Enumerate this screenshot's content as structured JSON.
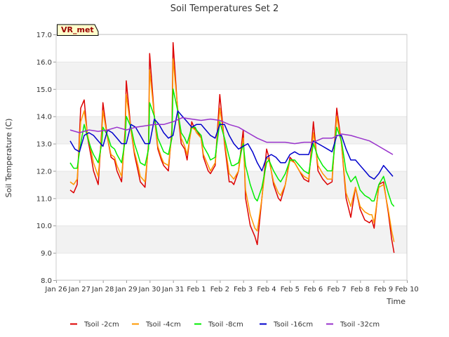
{
  "chart_data": {
    "type": "line",
    "title": "Soil Temperatures Set 2",
    "xlabel": "Time",
    "ylabel": "Soil Temperature (C)",
    "station_badge": "VR_met",
    "xlim": [
      0,
      15
    ],
    "ylim": [
      8.0,
      17.0
    ],
    "x_tick_labels": [
      "Jan 26",
      "Jan 27",
      "Jan 28",
      "Jan 29",
      "Jan 30",
      "Jan 31",
      "Feb 1",
      "Feb 2",
      "Feb 3",
      "Feb 4",
      "Feb 5",
      "Feb 6",
      "Feb 7",
      "Feb 8",
      "Feb 9",
      "Feb 10"
    ],
    "y_ticks": [
      8.0,
      9.0,
      10.0,
      11.0,
      12.0,
      13.0,
      14.0,
      15.0,
      16.0,
      17.0
    ],
    "y_tick_labels": [
      "8.0",
      "9.0",
      "10.0",
      "11.0",
      "12.0",
      "13.0",
      "14.0",
      "15.0",
      "16.0",
      "17.0"
    ],
    "grid": "horizontal bands",
    "legend_position": "bottom",
    "series": [
      {
        "name": "Tsoil -2cm",
        "color": "#dd0000",
        "x": [
          0.6,
          0.75,
          0.9,
          1.05,
          1.2,
          1.35,
          1.5,
          1.6,
          1.8,
          1.95,
          2.0,
          2.2,
          2.35,
          2.5,
          2.6,
          2.8,
          2.95,
          3.0,
          3.2,
          3.35,
          3.5,
          3.6,
          3.8,
          3.95,
          4.0,
          4.2,
          4.35,
          4.5,
          4.6,
          4.8,
          4.95,
          5.0,
          5.2,
          5.35,
          5.5,
          5.6,
          5.8,
          5.95,
          6.0,
          6.2,
          6.3,
          6.5,
          6.6,
          6.8,
          7.0,
          7.2,
          7.4,
          7.5,
          7.6,
          7.8,
          8.0,
          8.1,
          8.3,
          8.5,
          8.6,
          8.8,
          9.0,
          9.1,
          9.3,
          9.5,
          9.6,
          9.8,
          10.0,
          10.2,
          10.4,
          10.6,
          10.8,
          11.0,
          11.2,
          11.4,
          11.6,
          11.8,
          12.0,
          12.2,
          12.4,
          12.6,
          12.8,
          13.0,
          13.2,
          13.4,
          13.5,
          13.6,
          13.8,
          14.0,
          14.2,
          14.35,
          14.45
        ],
        "values": [
          11.3,
          11.2,
          11.5,
          14.3,
          14.6,
          13.2,
          12.5,
          12.0,
          11.5,
          13.5,
          14.5,
          13.2,
          12.5,
          12.4,
          12.0,
          11.6,
          13.5,
          15.3,
          13.5,
          12.6,
          12.0,
          11.6,
          11.4,
          13.0,
          16.3,
          14.0,
          12.8,
          12.4,
          12.2,
          12.0,
          13.5,
          16.7,
          14.2,
          13.0,
          12.8,
          12.4,
          13.8,
          13.5,
          13.5,
          13.2,
          12.5,
          12.0,
          11.9,
          12.2,
          14.8,
          13.0,
          11.6,
          11.6,
          11.5,
          12.0,
          13.5,
          11.0,
          10.0,
          9.6,
          9.3,
          11.0,
          12.8,
          12.5,
          11.5,
          11.0,
          10.9,
          11.5,
          12.5,
          12.3,
          12.0,
          11.7,
          11.6,
          13.8,
          12.0,
          11.7,
          11.5,
          11.6,
          14.3,
          13.0,
          11.0,
          10.3,
          11.4,
          10.6,
          10.2,
          10.1,
          10.2,
          9.9,
          11.5,
          11.6,
          10.5,
          9.5,
          9.0
        ]
      },
      {
        "name": "Tsoil -4cm",
        "color": "#ff9900",
        "x": [
          0.6,
          0.75,
          0.9,
          1.05,
          1.2,
          1.35,
          1.5,
          1.6,
          1.8,
          1.95,
          2.0,
          2.2,
          2.35,
          2.5,
          2.6,
          2.8,
          2.95,
          3.0,
          3.2,
          3.35,
          3.5,
          3.6,
          3.8,
          3.95,
          4.0,
          4.2,
          4.35,
          4.5,
          4.6,
          4.8,
          4.95,
          5.0,
          5.2,
          5.35,
          5.5,
          5.6,
          5.8,
          5.95,
          6.0,
          6.2,
          6.3,
          6.5,
          6.6,
          6.8,
          7.0,
          7.2,
          7.4,
          7.5,
          7.6,
          7.8,
          8.0,
          8.1,
          8.3,
          8.5,
          8.6,
          8.8,
          9.0,
          9.1,
          9.3,
          9.5,
          9.6,
          9.8,
          10.0,
          10.2,
          10.4,
          10.6,
          10.8,
          11.0,
          11.2,
          11.4,
          11.6,
          11.8,
          12.0,
          12.2,
          12.4,
          12.6,
          12.8,
          13.0,
          13.2,
          13.4,
          13.5,
          13.6,
          13.8,
          14.0,
          14.2,
          14.35,
          14.45
        ],
        "values": [
          11.6,
          11.5,
          11.7,
          13.8,
          14.2,
          13.3,
          12.7,
          12.3,
          11.8,
          13.3,
          14.2,
          13.2,
          12.6,
          12.5,
          12.2,
          11.8,
          13.3,
          14.8,
          13.5,
          12.7,
          12.2,
          11.8,
          11.6,
          12.9,
          15.7,
          14.0,
          12.9,
          12.5,
          12.3,
          12.2,
          13.3,
          16.1,
          14.3,
          13.2,
          12.9,
          12.6,
          13.6,
          13.5,
          13.4,
          13.2,
          12.6,
          12.2,
          12.0,
          12.3,
          14.3,
          13.1,
          11.9,
          11.8,
          11.7,
          12.0,
          13.2,
          11.3,
          10.4,
          9.9,
          9.8,
          11.0,
          12.5,
          12.4,
          11.6,
          11.2,
          11.1,
          11.5,
          12.4,
          12.3,
          12.0,
          11.8,
          11.7,
          13.4,
          12.2,
          11.9,
          11.7,
          11.7,
          14.0,
          13.0,
          11.2,
          10.7,
          11.4,
          10.7,
          10.5,
          10.4,
          10.4,
          10.1,
          11.4,
          11.5,
          10.6,
          9.8,
          9.4
        ]
      },
      {
        "name": "Tsoil -8cm",
        "color": "#00ee00",
        "x": [
          0.6,
          0.75,
          0.9,
          1.05,
          1.2,
          1.35,
          1.5,
          1.6,
          1.8,
          1.95,
          2.0,
          2.2,
          2.35,
          2.5,
          2.6,
          2.8,
          2.95,
          3.0,
          3.2,
          3.35,
          3.5,
          3.6,
          3.8,
          3.95,
          4.0,
          4.2,
          4.35,
          4.5,
          4.6,
          4.8,
          4.95,
          5.0,
          5.2,
          5.35,
          5.5,
          5.6,
          5.8,
          5.95,
          6.0,
          6.2,
          6.3,
          6.5,
          6.6,
          6.8,
          7.0,
          7.2,
          7.4,
          7.5,
          7.6,
          7.8,
          8.0,
          8.1,
          8.3,
          8.5,
          8.6,
          8.8,
          9.0,
          9.1,
          9.3,
          9.5,
          9.6,
          9.8,
          10.0,
          10.2,
          10.4,
          10.6,
          10.8,
          11.0,
          11.2,
          11.4,
          11.6,
          11.8,
          12.0,
          12.2,
          12.4,
          12.6,
          12.8,
          13.0,
          13.2,
          13.4,
          13.5,
          13.6,
          13.8,
          14.0,
          14.2,
          14.35,
          14.45
        ],
        "values": [
          12.3,
          12.1,
          12.1,
          13.0,
          13.7,
          13.2,
          12.8,
          12.6,
          12.3,
          13.0,
          13.6,
          13.3,
          12.9,
          12.8,
          12.6,
          12.3,
          13.1,
          14.0,
          13.6,
          13.0,
          12.6,
          12.3,
          12.2,
          12.8,
          14.5,
          14.0,
          13.2,
          12.9,
          12.7,
          12.6,
          13.2,
          15.0,
          14.2,
          13.4,
          13.2,
          13.0,
          13.6,
          13.6,
          13.5,
          13.3,
          12.9,
          12.6,
          12.4,
          12.5,
          13.8,
          13.2,
          12.5,
          12.2,
          12.2,
          12.3,
          13.0,
          12.2,
          11.5,
          11.0,
          10.9,
          11.4,
          12.3,
          12.4,
          12.0,
          11.7,
          11.6,
          11.9,
          12.4,
          12.4,
          12.2,
          12.0,
          11.9,
          13.0,
          12.5,
          12.2,
          12.0,
          12.0,
          13.6,
          13.1,
          12.0,
          11.6,
          11.8,
          11.3,
          11.1,
          11.0,
          10.9,
          10.9,
          11.5,
          11.8,
          11.2,
          10.8,
          10.7
        ]
      },
      {
        "name": "Tsoil -16cm",
        "color": "#0000cc",
        "x": [
          0.6,
          0.8,
          1.0,
          1.2,
          1.4,
          1.6,
          1.8,
          2.0,
          2.2,
          2.4,
          2.6,
          2.8,
          3.0,
          3.2,
          3.4,
          3.6,
          3.8,
          4.0,
          4.2,
          4.4,
          4.6,
          4.8,
          5.0,
          5.2,
          5.4,
          5.6,
          5.8,
          6.0,
          6.2,
          6.4,
          6.6,
          6.8,
          7.0,
          7.2,
          7.4,
          7.6,
          7.8,
          8.0,
          8.2,
          8.4,
          8.6,
          8.8,
          9.0,
          9.2,
          9.4,
          9.6,
          9.8,
          10.0,
          10.2,
          10.4,
          10.6,
          10.8,
          11.0,
          11.2,
          11.4,
          11.6,
          11.8,
          12.0,
          12.2,
          12.4,
          12.6,
          12.8,
          13.0,
          13.2,
          13.4,
          13.6,
          13.8,
          14.0,
          14.2,
          14.4
        ],
        "values": [
          13.1,
          12.8,
          12.7,
          13.3,
          13.4,
          13.3,
          13.1,
          12.9,
          13.5,
          13.4,
          13.2,
          13.0,
          13.0,
          13.7,
          13.6,
          13.3,
          13.0,
          13.0,
          13.9,
          13.7,
          13.4,
          13.2,
          13.3,
          14.2,
          14.0,
          13.8,
          13.6,
          13.7,
          13.7,
          13.5,
          13.3,
          13.2,
          13.7,
          13.7,
          13.3,
          13.0,
          12.8,
          12.9,
          13.0,
          12.7,
          12.3,
          12.0,
          12.5,
          12.6,
          12.5,
          12.3,
          12.3,
          12.6,
          12.7,
          12.6,
          12.6,
          12.6,
          13.1,
          13.0,
          12.9,
          12.8,
          12.7,
          13.3,
          13.3,
          12.8,
          12.4,
          12.4,
          12.2,
          12.0,
          11.8,
          11.7,
          11.9,
          12.2,
          12.0,
          11.8
        ]
      },
      {
        "name": "Tsoil -32cm",
        "color": "#9933cc",
        "x": [
          0.6,
          1.0,
          1.4,
          1.8,
          2.2,
          2.6,
          3.0,
          3.4,
          3.8,
          4.2,
          4.6,
          5.0,
          5.4,
          5.8,
          6.2,
          6.6,
          7.0,
          7.4,
          7.8,
          8.2,
          8.6,
          9.0,
          9.4,
          9.8,
          10.2,
          10.6,
          11.0,
          11.4,
          11.8,
          12.2,
          12.6,
          13.0,
          13.4,
          13.8,
          14.2,
          14.4
        ],
        "values": [
          13.5,
          13.4,
          13.5,
          13.45,
          13.5,
          13.6,
          13.5,
          13.6,
          13.65,
          13.7,
          13.7,
          13.8,
          13.95,
          13.9,
          13.85,
          13.9,
          13.85,
          13.7,
          13.6,
          13.4,
          13.2,
          13.05,
          13.05,
          13.05,
          13.0,
          13.05,
          13.05,
          13.2,
          13.2,
          13.35,
          13.3,
          13.2,
          13.1,
          12.9,
          12.7,
          12.6
        ]
      }
    ]
  }
}
